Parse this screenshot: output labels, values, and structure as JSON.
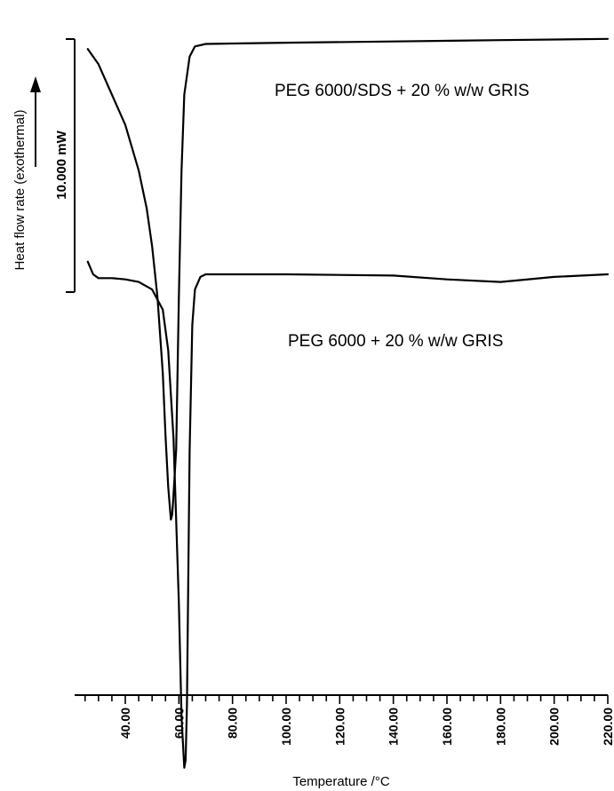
{
  "chart_data": {
    "type": "line",
    "title": "",
    "xlabel": "Temperature /°C",
    "ylabel": "Heat flow rate (exothermal)",
    "xlim": [
      25,
      220
    ],
    "grid": false,
    "legend": "none",
    "x_ticks": [
      "40.00",
      "60.00",
      "80.00",
      "100.00",
      "120.00",
      "140.00",
      "160.00",
      "180.00",
      "200.00",
      "220.00"
    ],
    "scale_bar": {
      "label": "10.000 mW",
      "value_mw": 10
    },
    "series": [
      {
        "name": "PEG 6000/SDS + 20 % w/w GRIS",
        "label_position": "right, below curve",
        "unit": "mW (relative)",
        "points": [
          [
            26,
            9.8
          ],
          [
            30,
            9.2
          ],
          [
            35,
            8.0
          ],
          [
            40,
            6.8
          ],
          [
            45,
            5.0
          ],
          [
            48,
            3.5
          ],
          [
            50,
            2.0
          ],
          [
            52,
            0.0
          ],
          [
            54,
            -3.0
          ],
          [
            55,
            -5.5
          ],
          [
            56,
            -7.5
          ],
          [
            57,
            -8.8
          ],
          [
            57.5,
            -8.6
          ],
          [
            58,
            -7.8
          ],
          [
            59,
            -6.0
          ],
          [
            60,
            0.0
          ],
          [
            61,
            5.0
          ],
          [
            62,
            8.0
          ],
          [
            64,
            9.5
          ],
          [
            66,
            9.9
          ],
          [
            70,
            10.0
          ],
          [
            100,
            10.05
          ],
          [
            140,
            10.1
          ],
          [
            180,
            10.15
          ],
          [
            220,
            10.2
          ]
        ]
      },
      {
        "name": "PEG 6000 + 20 % w/w GRIS",
        "label_position": "right, below curve",
        "unit": "mW (relative)",
        "points": [
          [
            26,
            0.5
          ],
          [
            28,
            0.0
          ],
          [
            30,
            -0.15
          ],
          [
            35,
            -0.15
          ],
          [
            40,
            -0.2
          ],
          [
            45,
            -0.3
          ],
          [
            50,
            -0.6
          ],
          [
            54,
            -1.4
          ],
          [
            56,
            -3.0
          ],
          [
            58,
            -6.5
          ],
          [
            60,
            -13.0
          ],
          [
            61,
            -17.5
          ],
          [
            62,
            -19.5
          ],
          [
            62.5,
            -19.2
          ],
          [
            63,
            -17.0
          ],
          [
            64,
            -7.0
          ],
          [
            65,
            -2.0
          ],
          [
            66,
            -0.6
          ],
          [
            68,
            -0.1
          ],
          [
            70,
            0.0
          ],
          [
            100,
            0.0
          ],
          [
            140,
            -0.05
          ],
          [
            160,
            -0.2
          ],
          [
            180,
            -0.3
          ],
          [
            200,
            -0.1
          ],
          [
            220,
            0.0
          ]
        ]
      }
    ]
  }
}
